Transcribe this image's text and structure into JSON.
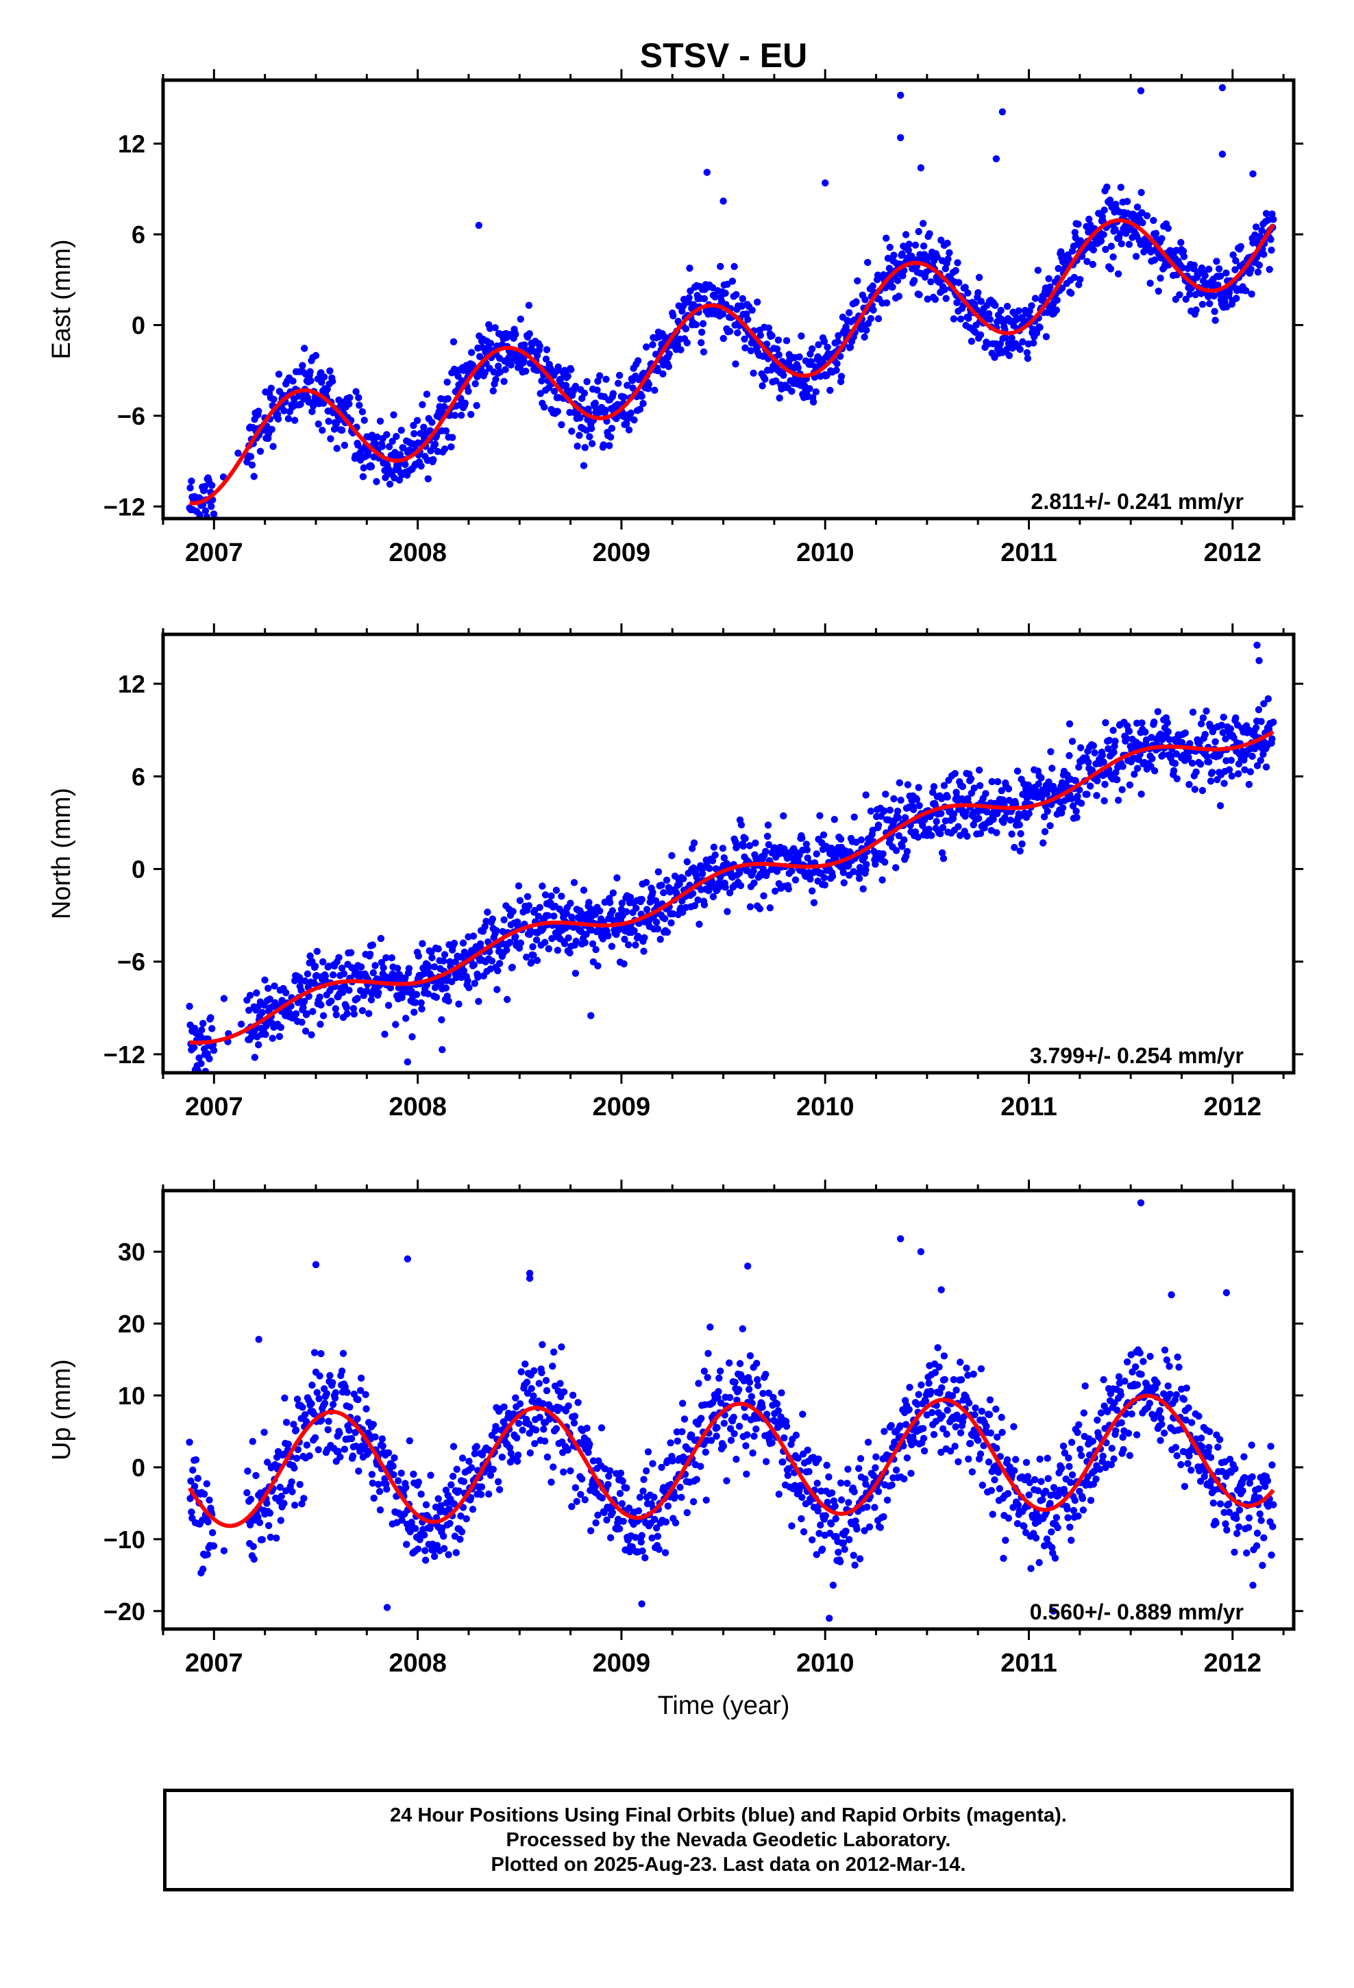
{
  "title": "STSV - EU",
  "xlabel": "Time (year)",
  "caption": [
    "24 Hour Positions Using Final Orbits (blue) and Rapid Orbits (magenta).",
    "Processed by the Nevada Geodetic Laboratory.",
    "Plotted on 2025-Aug-23. Last data on 2012-Mar-14."
  ],
  "colors": {
    "points": "#0000ff",
    "fit": "#ff0000",
    "frame": "#000000"
  },
  "chart_data": [
    {
      "type": "scatter",
      "ylabel": "East (mm)",
      "xlim": [
        2006.75,
        2012.3
      ],
      "ylim": [
        -12.8,
        16.2
      ],
      "yticks": [
        -12,
        -6,
        0,
        6,
        12
      ],
      "xticks": [
        2007,
        2008,
        2009,
        2010,
        2011,
        2012
      ],
      "rate_label": "2.811+/- 0.241 mm/yr",
      "trend": {
        "rate_mm_per_yr": 2.811,
        "value_at_2009_5": -1.5
      },
      "seasonal": {
        "annual_amplitude": 3.0,
        "peak_phase_year": 0.42
      },
      "data_start": 2006.88,
      "data_end": 2012.2,
      "scatter_sd": 1.05,
      "outliers": [
        [
          2010.37,
          15.2
        ],
        [
          2010.37,
          12.4
        ],
        [
          2010.47,
          10.4
        ],
        [
          2011.55,
          15.5
        ],
        [
          2011.95,
          15.7
        ],
        [
          2011.95,
          11.3
        ],
        [
          2010.87,
          14.1
        ],
        [
          2010.84,
          11.0
        ],
        [
          2008.3,
          6.6
        ],
        [
          2009.42,
          10.1
        ],
        [
          2009.5,
          8.2
        ],
        [
          2010.0,
          9.4
        ],
        [
          2012.1,
          10.0
        ]
      ]
    },
    {
      "type": "scatter",
      "ylabel": "North (mm)",
      "xlim": [
        2006.75,
        2012.3
      ],
      "ylim": [
        -13.2,
        15.2
      ],
      "yticks": [
        -12,
        -6,
        0,
        6,
        12
      ],
      "xticks": [
        2007,
        2008,
        2009,
        2010,
        2011,
        2012
      ],
      "rate_label": "3.799+/- 0.254 mm/yr",
      "trend": {
        "rate_mm_per_yr": 3.799,
        "value_at_2009_5": -0.9
      },
      "seasonal": {
        "annual_amplitude": 0.8,
        "peak_phase_year": 0.55
      },
      "data_start": 2006.88,
      "data_end": 2012.2,
      "scatter_sd": 1.1,
      "outliers": [
        [
          2012.12,
          14.5
        ],
        [
          2012.13,
          13.5
        ],
        [
          2007.95,
          -12.5
        ],
        [
          2007.2,
          -12.2
        ],
        [
          2008.12,
          -11.7
        ],
        [
          2008.85,
          -9.5
        ],
        [
          2011.2,
          9.4
        ],
        [
          2010.2,
          4.8
        ]
      ]
    },
    {
      "type": "scatter",
      "ylabel": "Up (mm)",
      "xlim": [
        2006.75,
        2012.3
      ],
      "ylim": [
        -22.5,
        38.5
      ],
      "yticks": [
        -20,
        -10,
        0,
        10,
        20,
        30
      ],
      "xticks": [
        2007,
        2008,
        2009,
        2010,
        2011,
        2012
      ],
      "rate_label": "0.560+/- 0.889 mm/yr",
      "trend": {
        "rate_mm_per_yr": 0.56,
        "value_at_2009_5": 1.0
      },
      "seasonal": {
        "annual_amplitude": 7.8,
        "peak_phase_year": 0.58
      },
      "data_start": 2006.88,
      "data_end": 2012.2,
      "scatter_sd": 3.6,
      "outliers": [
        [
          2007.5,
          28.2
        ],
        [
          2007.95,
          29.0
        ],
        [
          2008.55,
          27.0
        ],
        [
          2008.55,
          26.3
        ],
        [
          2009.62,
          28.0
        ],
        [
          2010.37,
          31.8
        ],
        [
          2010.47,
          30.0
        ],
        [
          2011.55,
          36.8
        ],
        [
          2011.7,
          24.0
        ],
        [
          2011.97,
          24.3
        ],
        [
          2007.85,
          -19.5
        ],
        [
          2009.1,
          -19.0
        ],
        [
          2010.02,
          -21.0
        ],
        [
          2011.12,
          -20.0
        ],
        [
          2007.22,
          17.8
        ],
        [
          2010.57,
          24.7
        ]
      ]
    }
  ]
}
